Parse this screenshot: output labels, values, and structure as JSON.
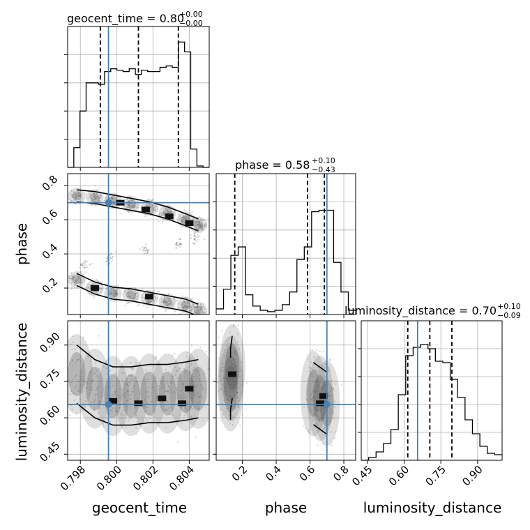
{
  "colors": {
    "truth": "#4682b4",
    "hist": "#000000",
    "quantile": "#000000",
    "grid": "#b0b0b0",
    "scatter": "#808080"
  },
  "chart_data": {
    "type": "corner",
    "grid": true,
    "parameters": [
      "geocent_time",
      "phase",
      "luminosity_distance"
    ],
    "truths": {
      "geocent_time": 0.79955,
      "phase": 0.7,
      "luminosity_distance": 0.655
    },
    "panel_titles": [
      {
        "param": "geocent_time",
        "text": "geocent_time = 0.80",
        "sup": "+0.00",
        "sub": "−0.00"
      },
      {
        "param": "phase",
        "text": "phase = 0.58",
        "sup": "+0.10",
        "sub": "−0.43"
      },
      {
        "param": "luminosity_distance",
        "text": "luminosity_distance = 0.70",
        "sup": "+0.10",
        "sub": "−0.09"
      }
    ],
    "axis_labels": {
      "x": [
        "geocent_time",
        "phase",
        "luminosity_distance"
      ],
      "y": [
        "phase",
        "luminosity_distance"
      ]
    },
    "ranges": {
      "geocent_time": [
        0.7973,
        0.8051
      ],
      "phase": [
        0.045,
        0.87
      ],
      "luminosity_distance": [
        0.425,
        1.0
      ]
    },
    "ticks": {
      "geocent_time": {
        "values": [
          0.798,
          0.8,
          0.802,
          0.804
        ],
        "labels": [
          "0.798",
          "0.800",
          "0.802",
          "0.804"
        ]
      },
      "phase_x": {
        "values": [
          0.2,
          0.4,
          0.6,
          0.8
        ],
        "labels": [
          "0.2",
          "0.4",
          "0.6",
          "0.8"
        ]
      },
      "phase_y": {
        "values": [
          0.2,
          0.4,
          0.6,
          0.8
        ],
        "labels": [
          "0.2",
          "0.4",
          "0.6",
          "0.8"
        ]
      },
      "luminosity_distance": {
        "values": [
          0.45,
          0.6,
          0.75,
          0.9
        ],
        "labels": [
          "0.45",
          "0.60",
          "0.75",
          "0.90"
        ]
      }
    },
    "histograms": [
      {
        "param": "geocent_time",
        "quantiles": [
          0.7991,
          0.8012,
          0.8034
        ],
        "counts": [
          0,
          0.14,
          0.4,
          0.6,
          0.6,
          0.59,
          0.68,
          0.7,
          0.69,
          0.68,
          0.7,
          0.66,
          0.69,
          0.68,
          0.68,
          0.71,
          0.72,
          0.71,
          0.89,
          0.82,
          0.13,
          0.01,
          0
        ]
      },
      {
        "param": "phase",
        "quantiles": [
          0.155,
          0.585,
          0.685
        ],
        "counts": [
          0.04,
          0.18,
          0.42,
          0.48,
          0.14,
          0.06,
          0.03,
          0.02,
          0.03,
          0.07,
          0.16,
          0.39,
          0.48,
          0.73,
          0.74,
          0.74,
          0.37,
          0.16,
          0.03
        ]
      },
      {
        "param": "luminosity_distance",
        "quantiles": [
          0.615,
          0.705,
          0.795
        ],
        "counts": [
          0.0,
          0.02,
          0.06,
          0.12,
          0.22,
          0.47,
          0.75,
          0.81,
          0.83,
          0.8,
          0.71,
          0.7,
          0.58,
          0.45,
          0.29,
          0.19,
          0.1,
          0.05,
          0.04
        ]
      }
    ],
    "scatter_panels": [
      {
        "x": "geocent_time",
        "y": "phase",
        "modes": [
          {
            "xs": [
              0.7978,
              0.7988,
              0.7998,
              0.8008,
              0.8018,
              0.8028,
              0.8038,
              0.8045
            ],
            "ys": [
              0.74,
              0.73,
              0.71,
              0.69,
              0.67,
              0.64,
              0.6,
              0.57
            ]
          },
          {
            "xs": [
              0.7978,
              0.7988,
              0.7998,
              0.8008,
              0.8018,
              0.8028,
              0.8038,
              0.8045
            ],
            "ys": [
              0.25,
              0.2,
              0.17,
              0.16,
              0.14,
              0.12,
              0.1,
              0.07
            ]
          }
        ],
        "bridge": {
          "xs": [
            0.8046,
            0.8043,
            0.8034,
            0.8016,
            0.7996,
            0.7982
          ],
          "ys": [
            0.56,
            0.5,
            0.46,
            0.42,
            0.37,
            0.33
          ]
        },
        "dark_cells": [
          [
            0.8002,
            0.7
          ],
          [
            0.8016,
            0.66
          ],
          [
            0.8029,
            0.62
          ],
          [
            0.804,
            0.58
          ],
          [
            0.7988,
            0.2
          ],
          [
            0.8018,
            0.15
          ]
        ]
      },
      {
        "x": "geocent_time",
        "y": "luminosity_distance",
        "modes": [
          {
            "xs": [
              0.7978,
              0.7988,
              0.7998,
              0.8008,
              0.8018,
              0.8028,
              0.8038,
              0.8045
            ],
            "ys": [
              0.78,
              0.72,
              0.69,
              0.69,
              0.7,
              0.7,
              0.71,
              0.72
            ]
          }
        ],
        "dark_cells": [
          [
            0.7998,
            0.67
          ],
          [
            0.8012,
            0.66
          ],
          [
            0.8025,
            0.68
          ],
          [
            0.8036,
            0.66
          ],
          [
            0.804,
            0.72
          ]
        ]
      },
      {
        "x": "phase",
        "y": "luminosity_distance",
        "modes": [
          {
            "xs": [
              0.13,
              0.13,
              0.14
            ],
            "ys": [
              0.72,
              0.76,
              0.81
            ]
          },
          {
            "xs": [
              0.62,
              0.66,
              0.7
            ],
            "ys": [
              0.7,
              0.68,
              0.66
            ]
          }
        ],
        "dark_cells": [
          [
            0.14,
            0.78
          ],
          [
            0.66,
            0.66
          ],
          [
            0.68,
            0.69
          ]
        ]
      }
    ]
  }
}
